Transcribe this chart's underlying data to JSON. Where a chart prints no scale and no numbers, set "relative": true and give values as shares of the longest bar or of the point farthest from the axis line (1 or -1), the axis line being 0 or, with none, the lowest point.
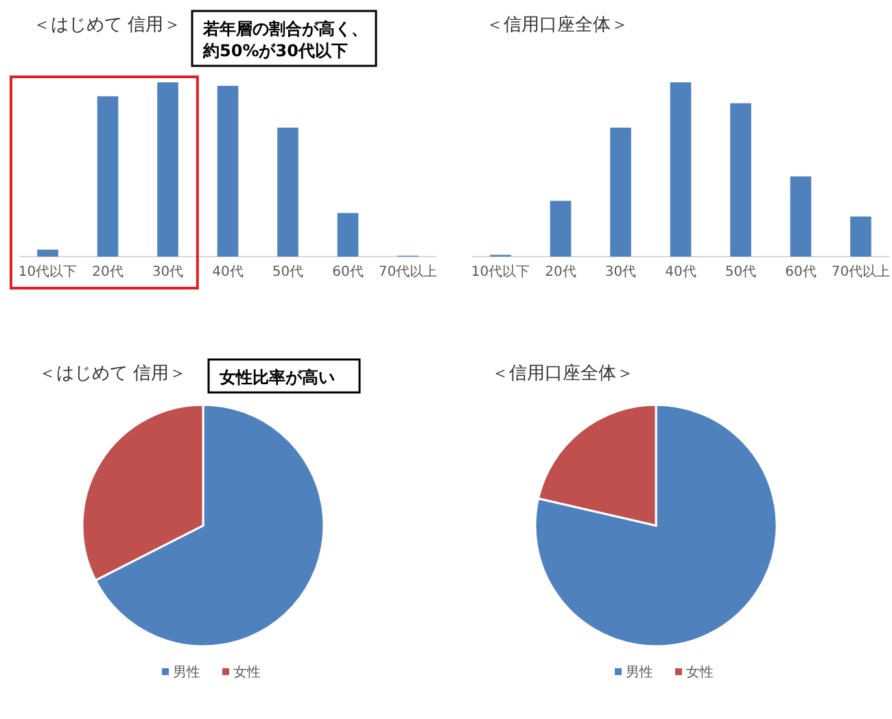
{
  "chart_data": [
    {
      "type": "bar",
      "title": "＜はじめて 信用＞",
      "categories": [
        "10代以下",
        "20代",
        "30代",
        "40代",
        "50代",
        "60代",
        "70代以上"
      ],
      "values": [
        0.04,
        0.92,
        1,
        0.98,
        0.74,
        0.25,
        0.005
      ],
      "color": "#4f81bd",
      "relative": true,
      "annotations": [
        "若年層の割合が高く、約50%が30代以下"
      ]
    },
    {
      "type": "bar",
      "title": "＜信用口座全体＞",
      "categories": [
        "10代以下",
        "20代",
        "30代",
        "40代",
        "50代",
        "60代",
        "70代以上"
      ],
      "values": [
        0.01,
        0.32,
        0.74,
        1,
        0.88,
        0.46,
        0.23
      ],
      "color": "#4f81bd",
      "relative": true
    },
    {
      "type": "pie",
      "title": "＜はじめて 信用＞",
      "categories": [
        "男性",
        "女性"
      ],
      "values": [
        67.5,
        32.5
      ],
      "colors": [
        "#4f81bd",
        "#c0504d"
      ],
      "legend": "bottom",
      "annotations": [
        "女性比率が高い"
      ]
    },
    {
      "type": "pie",
      "title": "＜信用口座全体＞",
      "categories": [
        "男性",
        "女性"
      ],
      "values": [
        78.6,
        21.4
      ],
      "colors": [
        "#4f81bd",
        "#c0504d"
      ],
      "legend": "bottom"
    }
  ]
}
